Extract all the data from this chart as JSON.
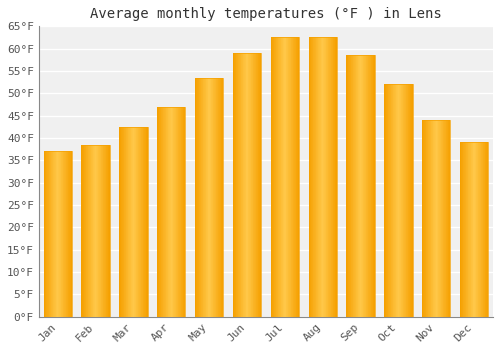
{
  "title": "Average monthly temperatures (°F ) in Lens",
  "months": [
    "Jan",
    "Feb",
    "Mar",
    "Apr",
    "May",
    "Jun",
    "Jul",
    "Aug",
    "Sep",
    "Oct",
    "Nov",
    "Dec"
  ],
  "values": [
    37,
    38.5,
    42.5,
    47,
    53.5,
    59,
    62.5,
    62.5,
    58.5,
    52,
    44,
    39
  ],
  "bar_color_center": "#FFC84A",
  "bar_color_edge": "#F5A000",
  "ylim": [
    0,
    65
  ],
  "ytick_step": 5,
  "background_color": "#FFFFFF",
  "plot_bg_color": "#F0F0F0",
  "grid_color": "#FFFFFF",
  "title_fontsize": 10,
  "tick_fontsize": 8,
  "font_family": "monospace",
  "bar_width": 0.75
}
